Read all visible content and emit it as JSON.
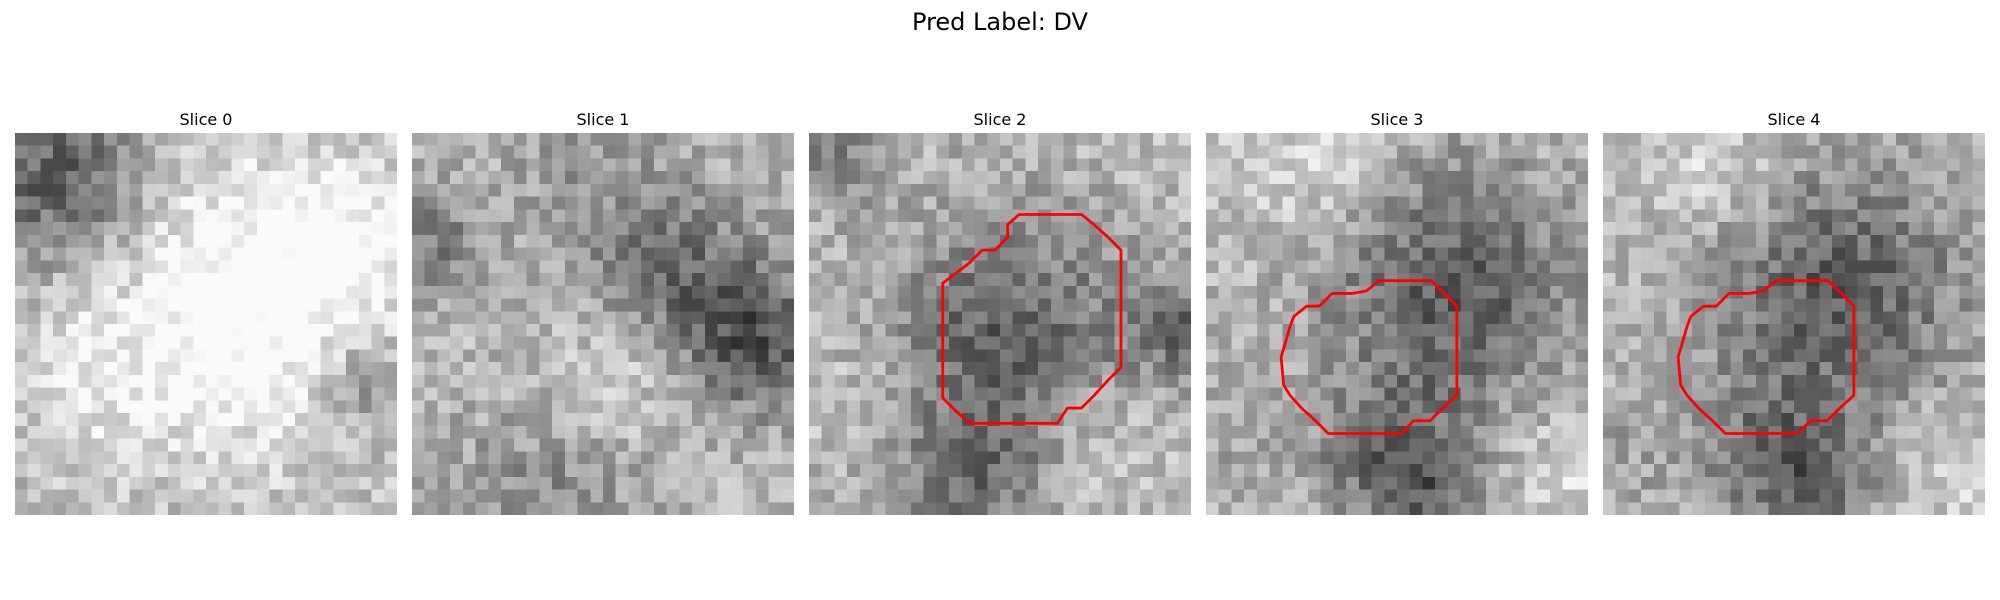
{
  "figure": {
    "title": "Pred Label: DV"
  },
  "panels": [
    {
      "title": "Slice 0",
      "seed": 11,
      "blobs": [
        [
          3,
          3,
          5,
          -95
        ],
        [
          18,
          13,
          8,
          90
        ],
        [
          26,
          8,
          4,
          45
        ],
        [
          27,
          19,
          3,
          -60
        ],
        [
          6,
          19,
          5,
          25
        ]
      ],
      "contour": null
    },
    {
      "title": "Slice 1",
      "seed": 23,
      "blobs": [
        [
          20,
          11,
          5,
          -75
        ],
        [
          27,
          16,
          4,
          -90
        ],
        [
          10,
          29,
          6,
          -45
        ],
        [
          1,
          8,
          3,
          -60
        ],
        [
          16,
          18,
          4,
          40
        ],
        [
          13,
          1,
          5,
          -30
        ]
      ],
      "contour": null
    },
    {
      "title": "Slice 2",
      "seed": 37,
      "blobs": [
        [
          15,
          16,
          7,
          -90
        ],
        [
          29,
          15,
          3,
          -70
        ],
        [
          12,
          27,
          4,
          -60
        ],
        [
          22,
          23,
          4,
          30
        ],
        [
          5,
          20,
          4,
          20
        ],
        [
          1,
          1,
          3,
          -50
        ]
      ],
      "contour": [
        [
          16.5,
          6.4
        ],
        [
          15.6,
          7.2
        ],
        [
          15.6,
          8.2
        ],
        [
          14.6,
          9.2
        ],
        [
          13.6,
          9.2
        ],
        [
          12.6,
          10.2
        ],
        [
          10.5,
          11.8
        ],
        [
          10.5,
          20.8
        ],
        [
          11.5,
          21.8
        ],
        [
          12.6,
          22.8
        ],
        [
          19.5,
          22.8
        ],
        [
          20.3,
          21.6
        ],
        [
          21.4,
          21.6
        ],
        [
          22.4,
          20.6
        ],
        [
          23.5,
          19.4
        ],
        [
          24.5,
          18.4
        ],
        [
          24.5,
          9.2
        ],
        [
          23.5,
          8.2
        ],
        [
          22.4,
          7.2
        ],
        [
          21.4,
          6.4
        ]
      ]
    },
    {
      "title": "Slice 3",
      "seed": 41,
      "blobs": [
        [
          19,
          12,
          7,
          -95
        ],
        [
          14,
          25,
          4,
          -70
        ],
        [
          17,
          28,
          3,
          -50
        ],
        [
          2,
          24,
          4,
          -20
        ],
        [
          28,
          26,
          4,
          30
        ],
        [
          8,
          2,
          4,
          35
        ]
      ],
      "contour": [
        [
          12.6,
          12.4
        ],
        [
          13.6,
          11.6
        ],
        [
          17.7,
          11.6
        ],
        [
          18.7,
          12.6
        ],
        [
          19.7,
          13.6
        ],
        [
          19.7,
          20.6
        ],
        [
          18.6,
          21.6
        ],
        [
          17.6,
          22.6
        ],
        [
          16.3,
          22.6
        ],
        [
          15.3,
          23.6
        ],
        [
          9.6,
          23.6
        ],
        [
          8.6,
          22.6
        ],
        [
          7.5,
          21.6
        ],
        [
          6.6,
          20.6
        ],
        [
          6.1,
          19.8
        ],
        [
          5.9,
          17.6
        ],
        [
          6.6,
          15.2
        ],
        [
          6.9,
          14.4
        ],
        [
          7.9,
          13.6
        ],
        [
          8.9,
          13.6
        ],
        [
          9.9,
          12.6
        ],
        [
          10.5,
          12.6
        ],
        [
          11.5,
          12.6
        ]
      ]
    },
    {
      "title": "Slice 4",
      "seed": 53,
      "blobs": [
        [
          18,
          12,
          7,
          -95
        ],
        [
          13,
          25,
          4,
          -70
        ],
        [
          17,
          28,
          3,
          -50
        ],
        [
          2,
          24,
          4,
          -20
        ],
        [
          28,
          26,
          4,
          30
        ],
        [
          8,
          2,
          4,
          35
        ]
      ],
      "contour": [
        [
          12.6,
          12.4
        ],
        [
          13.6,
          11.6
        ],
        [
          17.7,
          11.6
        ],
        [
          18.7,
          12.6
        ],
        [
          19.7,
          13.6
        ],
        [
          19.7,
          20.6
        ],
        [
          18.6,
          21.6
        ],
        [
          17.6,
          22.6
        ],
        [
          16.3,
          22.6
        ],
        [
          15.3,
          23.6
        ],
        [
          9.6,
          23.6
        ],
        [
          8.6,
          22.6
        ],
        [
          7.5,
          21.6
        ],
        [
          6.6,
          20.6
        ],
        [
          6.1,
          19.8
        ],
        [
          5.9,
          17.6
        ],
        [
          6.6,
          15.2
        ],
        [
          6.9,
          14.4
        ],
        [
          7.9,
          13.6
        ],
        [
          8.9,
          13.6
        ],
        [
          9.9,
          12.6
        ],
        [
          10.5,
          12.6
        ],
        [
          11.5,
          12.6
        ]
      ]
    }
  ],
  "colors": {
    "contour": "#ff0000",
    "colormap": "gray"
  }
}
